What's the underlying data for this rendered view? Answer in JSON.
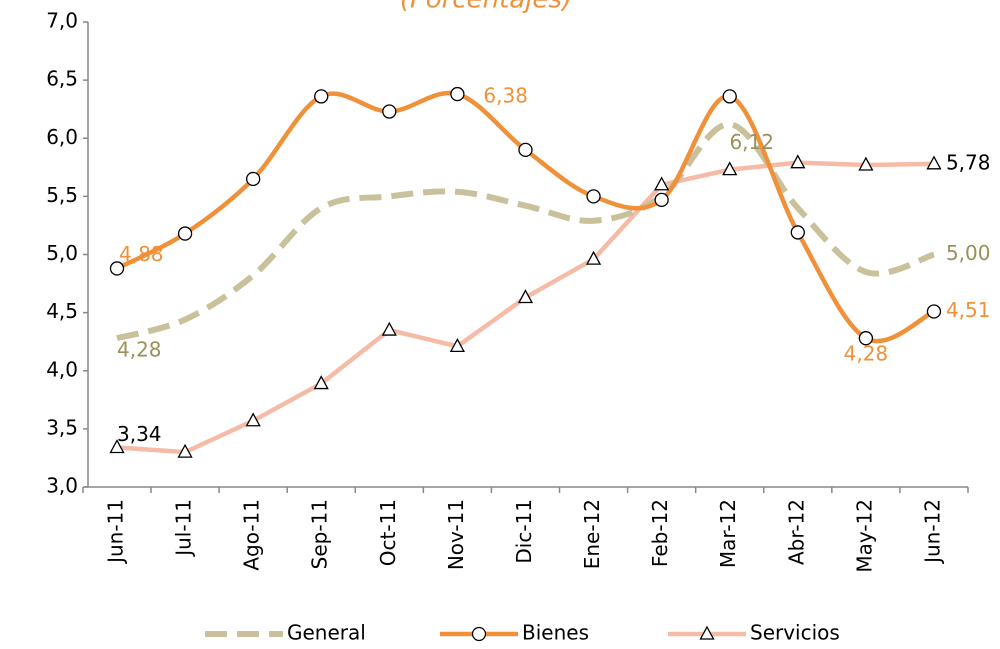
{
  "chart_data": {
    "type": "line",
    "subtitle": "(Porcentajes)",
    "categories": [
      "Jun-11",
      "Jul-11",
      "Ago-11",
      "Sep-11",
      "Oct-11",
      "Nov-11",
      "Dic-11",
      "Ene-12",
      "Feb-12",
      "Mar-12",
      "Abr-12",
      "May-12",
      "Jun-12"
    ],
    "series": [
      {
        "name": "General",
        "color": "#c9c19b",
        "label_color": "#9a915a",
        "style": "dashed",
        "smooth": true,
        "marker": null,
        "values": [
          4.28,
          4.44,
          4.82,
          5.4,
          5.5,
          5.54,
          5.42,
          5.29,
          5.5,
          6.12,
          5.4,
          4.85,
          5.0
        ],
        "value_labels": [
          "4,28",
          null,
          null,
          null,
          null,
          null,
          null,
          null,
          null,
          "6,12",
          null,
          null,
          "5,00"
        ]
      },
      {
        "name": "Bienes",
        "color": "#f0913a",
        "label_color": "#f0913a",
        "style": "solid",
        "smooth": true,
        "marker": "circle",
        "values": [
          4.88,
          5.18,
          5.65,
          6.36,
          6.23,
          6.38,
          5.9,
          5.5,
          5.47,
          6.36,
          5.19,
          4.28,
          4.51
        ],
        "value_labels": [
          "4,88",
          null,
          null,
          null,
          null,
          "6,38",
          null,
          null,
          null,
          null,
          null,
          "4,28",
          "4,51"
        ]
      },
      {
        "name": "Servicios",
        "color": "#f5bba6",
        "label_color": "#000000",
        "style": "solid",
        "smooth": false,
        "marker": "triangle",
        "values": [
          3.34,
          3.3,
          3.57,
          3.89,
          4.35,
          4.21,
          4.63,
          4.96,
          5.6,
          5.73,
          5.79,
          5.77,
          5.78
        ],
        "value_labels": [
          "3,34",
          null,
          null,
          null,
          null,
          null,
          null,
          null,
          null,
          null,
          null,
          null,
          "5,78"
        ]
      }
    ],
    "ylim": [
      3.0,
      7.0
    ],
    "yticks": [
      {
        "value": 3.0,
        "label": "3,0"
      },
      {
        "value": 3.5,
        "label": "3,5"
      },
      {
        "value": 4.0,
        "label": "4,0"
      },
      {
        "value": 4.5,
        "label": "4,5"
      },
      {
        "value": 5.0,
        "label": "5,0"
      },
      {
        "value": 5.5,
        "label": "5,5"
      },
      {
        "value": 6.0,
        "label": "6,0"
      },
      {
        "value": 6.5,
        "label": "6,5"
      },
      {
        "value": 7.0,
        "label": "7,0"
      }
    ],
    "grid": false,
    "legend": "bottom"
  }
}
